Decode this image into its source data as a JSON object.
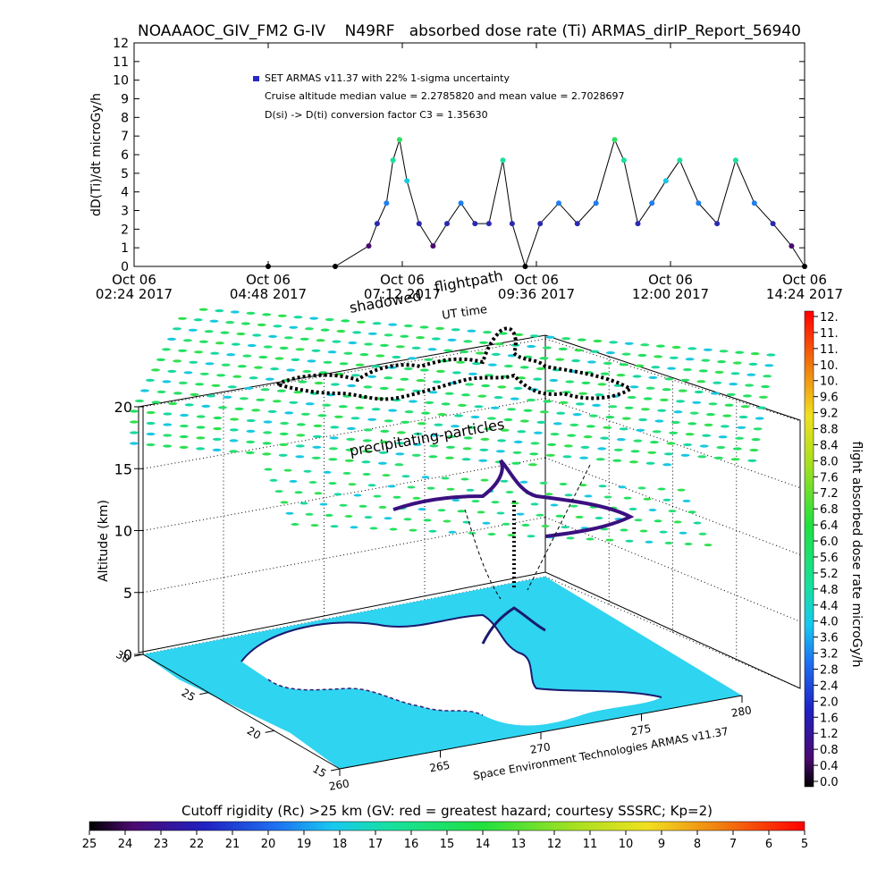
{
  "header": {
    "title": "NOAAAOC_GIV_FM2 G-IV    N49RF   absorbed dose rate (Ti) ARMAS_dirIP_Report_56940"
  },
  "legend": {
    "line1": "SET ARMAS v11.37 with 22% 1-sigma uncertainty",
    "line2": "Cruise altitude median value = 2.2785820 and mean value = 2.7028697",
    "line3": "D(si) -> D(ti) conversion factor C3 = 1.35630"
  },
  "top_axis": {
    "ylabel": "dD(Ti)/dt microGy/h",
    "y_ticks": [
      "0",
      "1",
      "2",
      "3",
      "4",
      "5",
      "6",
      "7",
      "8",
      "9",
      "10",
      "11",
      "12"
    ],
    "x_ticks": [
      {
        "line1": "Oct 06",
        "line2": "02:24 2017"
      },
      {
        "line1": "Oct 06",
        "line2": "04:48 2017"
      },
      {
        "line1": "Oct 06",
        "line2": "07:12 2017"
      },
      {
        "line1": "Oct 06",
        "line2": "09:36 2017"
      },
      {
        "line1": "Oct 06",
        "line2": "12:00 2017"
      },
      {
        "line1": "Oct 06",
        "line2": "14:24 2017"
      }
    ]
  },
  "plot3d": {
    "label_shadowed": "shadowed",
    "label_flightpath": "flightpath",
    "label_ut": "UT time",
    "label_precip": "precipitating-particles",
    "altitude_label": "Altitude (km)",
    "alt_ticks": [
      "0",
      "5",
      "10",
      "15",
      "20"
    ],
    "lat_ticks": [
      "15",
      "20",
      "25",
      "30"
    ],
    "lon_ticks": [
      "260",
      "265",
      "270",
      "275",
      "280"
    ],
    "credit": "Space Environment Technologies ARMAS v11.37"
  },
  "colorbar_right": {
    "title": "flight absorbed dose rate microGy/h",
    "ticks": [
      "12.",
      "11.",
      "11.",
      "10.",
      "10.",
      "9.6",
      "9.2",
      "8.8",
      "8.4",
      "8.0",
      "7.6",
      "7.2",
      "6.8",
      "6.4",
      "6.0",
      "5.6",
      "5.2",
      "4.8",
      "4.4",
      "4.0",
      "3.6",
      "3.2",
      "2.8",
      "2.4",
      "2.0",
      "1.6",
      "1.2",
      "0.8",
      "0.4",
      "0.0"
    ]
  },
  "colorbar_bottom": {
    "title": "Cutoff rigidity (Rc) >25 km (GV: red = greatest hazard; courtesy SSSRC; Kp=2)",
    "ticks": [
      "25",
      "24",
      "23",
      "22",
      "21",
      "20",
      "19",
      "18",
      "17",
      "16",
      "15",
      "14",
      "13",
      "12",
      "11",
      "10",
      "9",
      "8",
      "7",
      "6",
      "5"
    ]
  },
  "chart_data": {
    "type": "scatter",
    "title": "NOAAAOC_GIV_FM2 G-IV    N49RF   absorbed dose rate (Ti) ARMAS_dirIP_Report_56940",
    "ylabel": "dD(Ti)/dt microGy/h",
    "ylim": [
      0,
      12
    ],
    "xlim": [
      "2017-10-06 02:24",
      "2017-10-06 14:24"
    ],
    "series": [
      {
        "name": "SET ARMAS v11.37 with 22% 1-sigma uncertainty",
        "x": [
          "2017-10-06 04:48",
          "2017-10-06 06:00",
          "2017-10-06 06:36",
          "2017-10-06 06:45",
          "2017-10-06 06:55",
          "2017-10-06 07:02",
          "2017-10-06 07:09",
          "2017-10-06 07:17",
          "2017-10-06 07:30",
          "2017-10-06 07:45",
          "2017-10-06 08:00",
          "2017-10-06 08:15",
          "2017-10-06 08:30",
          "2017-10-06 08:45",
          "2017-10-06 09:00",
          "2017-10-06 09:10",
          "2017-10-06 09:24",
          "2017-10-06 09:40",
          "2017-10-06 10:00",
          "2017-10-06 10:20",
          "2017-10-06 10:40",
          "2017-10-06 11:00",
          "2017-10-06 11:10",
          "2017-10-06 11:25",
          "2017-10-06 11:40",
          "2017-10-06 11:55",
          "2017-10-06 12:10",
          "2017-10-06 12:30",
          "2017-10-06 12:50",
          "2017-10-06 13:10",
          "2017-10-06 13:30",
          "2017-10-06 13:50",
          "2017-10-06 14:10",
          "2017-10-06 14:24"
        ],
        "y": [
          0,
          0,
          1.1,
          2.3,
          3.4,
          5.7,
          6.8,
          4.6,
          2.3,
          1.1,
          2.3,
          3.4,
          2.3,
          2.3,
          5.7,
          2.3,
          0,
          2.3,
          3.4,
          2.3,
          3.4,
          6.8,
          5.7,
          2.3,
          3.4,
          4.6,
          5.7,
          3.4,
          2.3,
          5.7,
          3.4,
          2.3,
          1.1,
          0
        ]
      }
    ],
    "colorbar_right": {
      "label": "flight absorbed dose rate microGy/h",
      "range": [
        0.0,
        12
      ]
    },
    "colorbar_bottom": {
      "label": "Cutoff rigidity (Rc) >25 km (GV: red = greatest hazard; courtesy SSSRC; Kp=2)",
      "range": [
        25,
        5
      ]
    },
    "plot3d_axes": {
      "altitude_km": [
        0,
        20
      ],
      "lat_ticks": [
        15,
        20,
        25,
        30
      ],
      "lon_ticks": [
        260,
        265,
        270,
        275,
        280
      ]
    }
  }
}
